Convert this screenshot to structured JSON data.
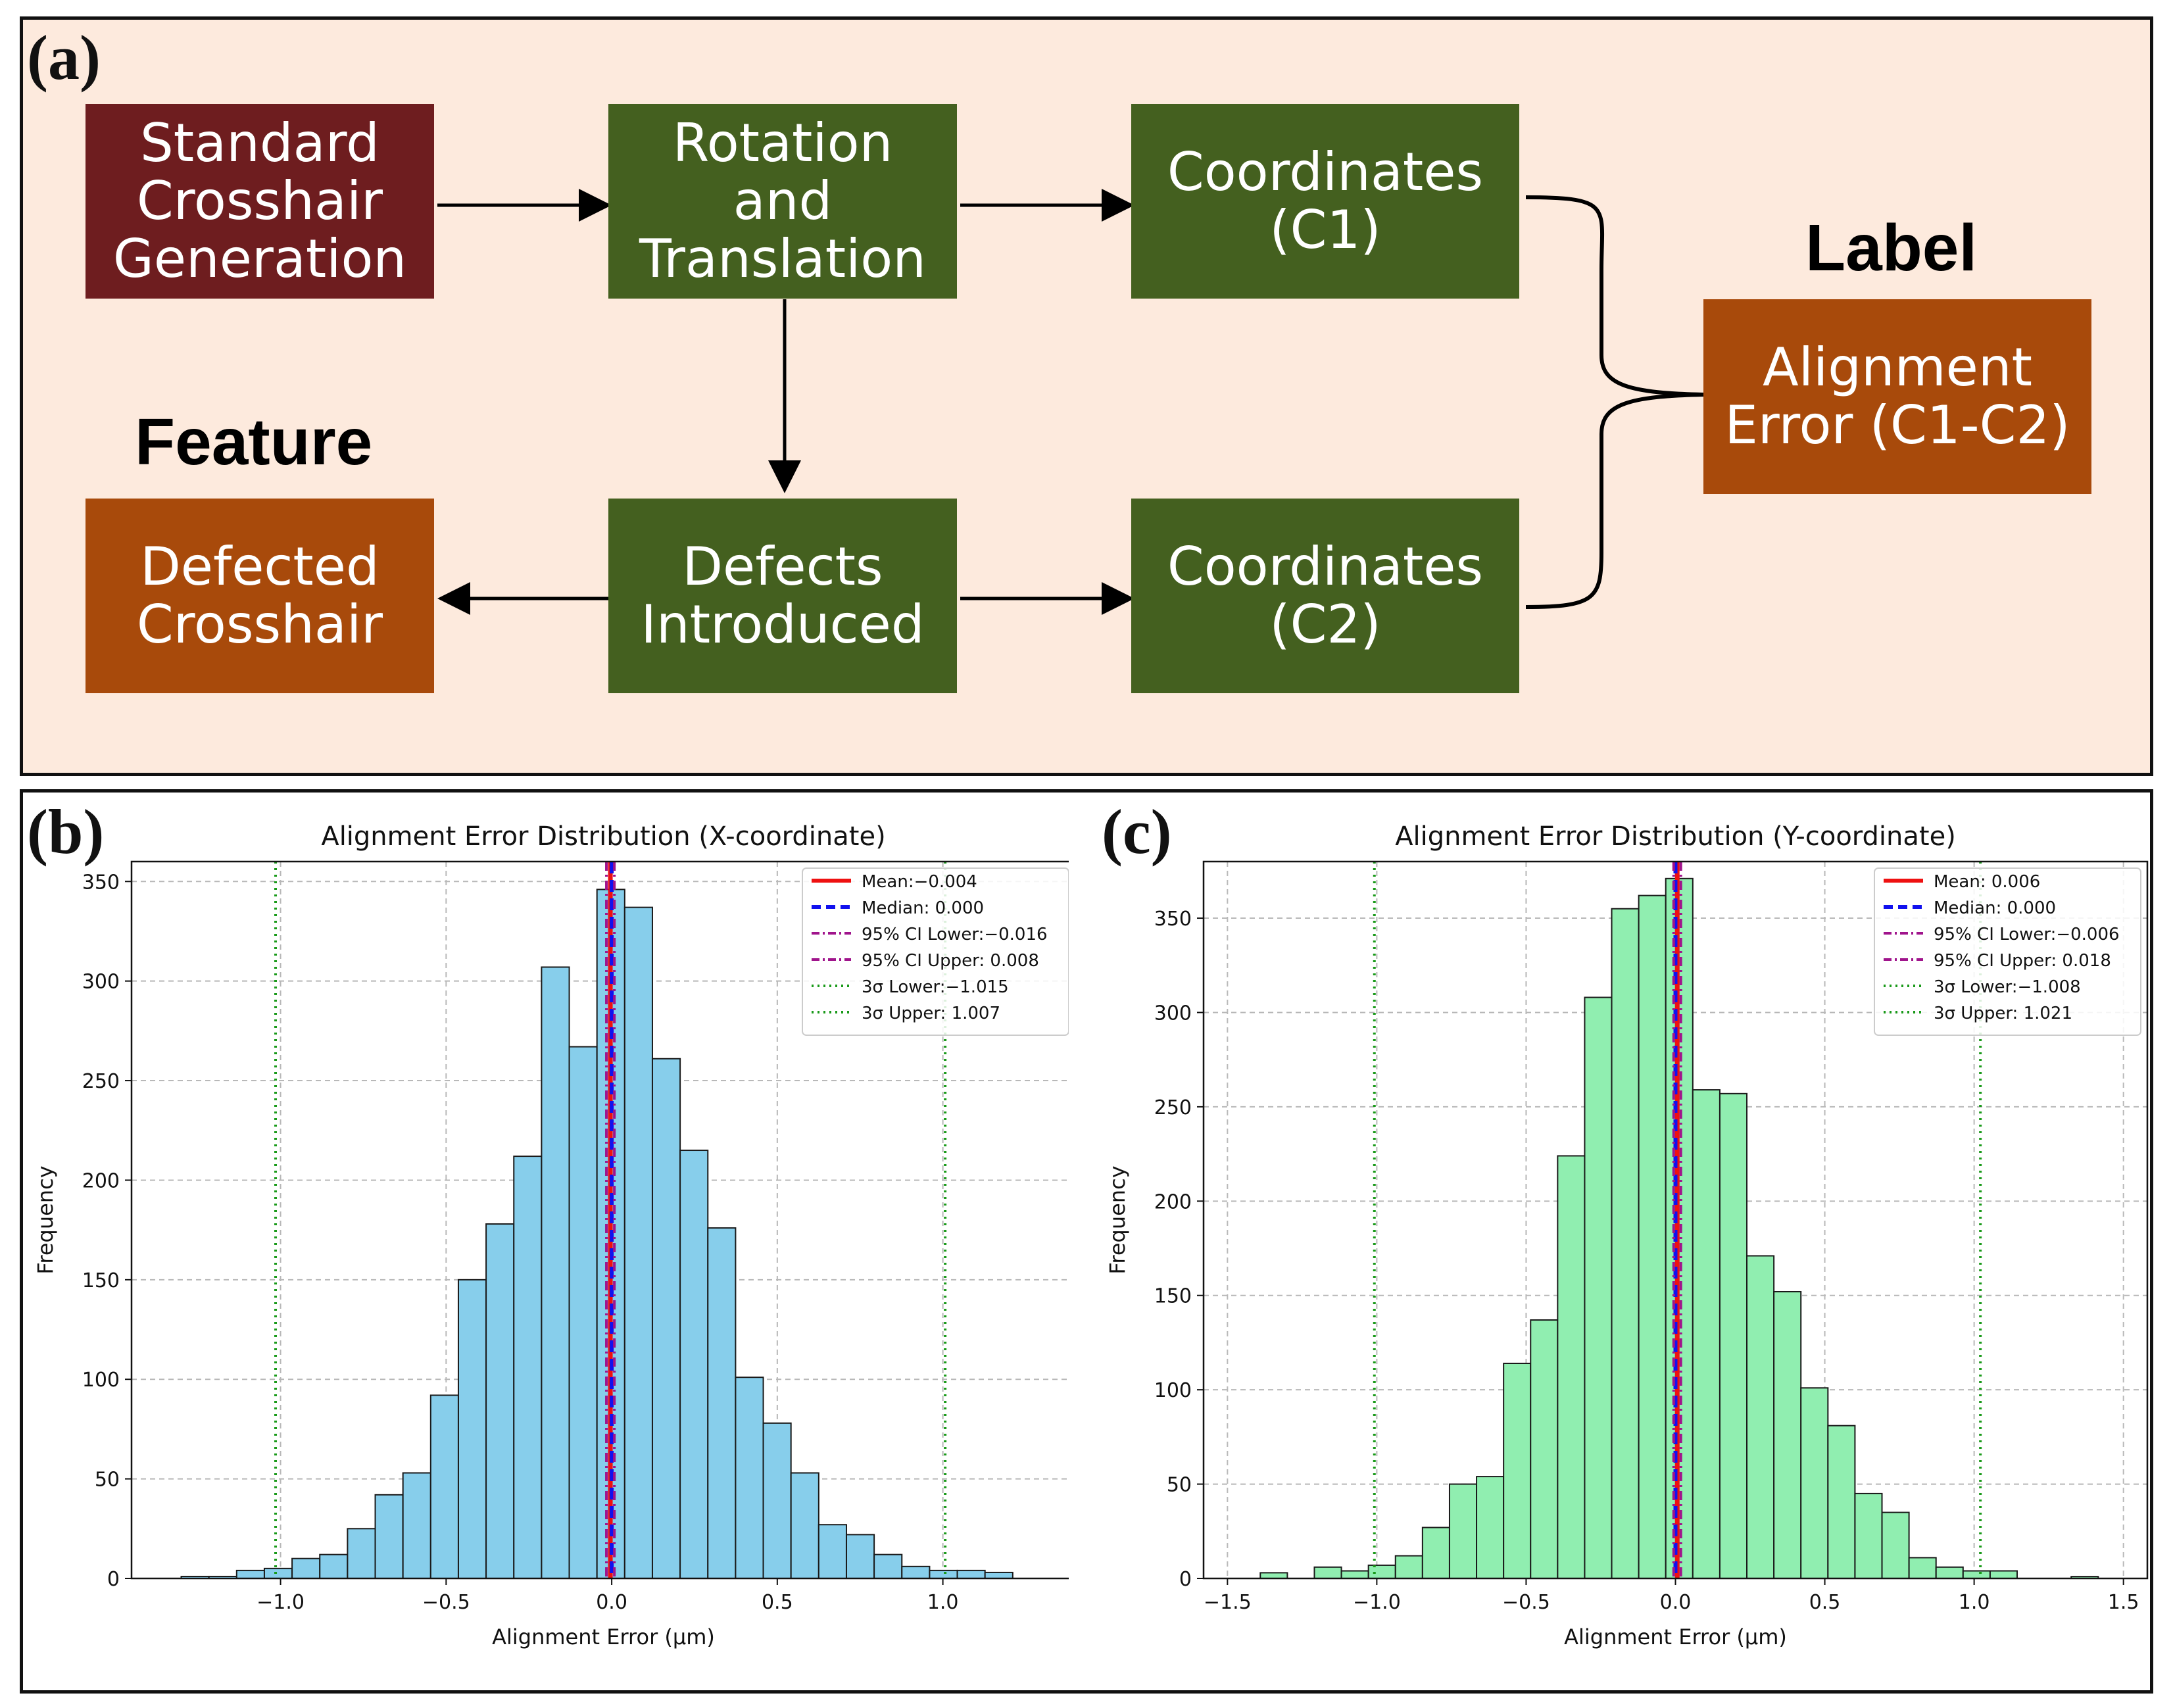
{
  "panel_labels": {
    "a": "(a)",
    "b": "(b)",
    "c": "(c)"
  },
  "flowchart": {
    "standard": "Standard\nCrosshair\nGeneration",
    "rotation": "Rotation\nand\nTranslation",
    "coord1": "Coordinates\n(C1)",
    "defects": "Defects\nIntroduced",
    "coord2": "Coordinates\n(C2)",
    "defected": "Defected\nCrosshair",
    "alignment": "Alignment\nError (C1-C2)",
    "feature_label": "Feature",
    "label_label": "Label"
  },
  "chart_data": [
    {
      "type": "bar",
      "title": "Alignment Error Distribution (X-coordinate)",
      "xlabel": "Alignment Error (μm)",
      "ylabel": "Frequency",
      "xlim": [
        -1.45,
        1.4
      ],
      "ylim": [
        0,
        360
      ],
      "xticks": [
        -1.0,
        -0.5,
        0.0,
        0.5,
        1.0
      ],
      "xtick_labels": [
        "−1.0",
        "−0.5",
        "0.0",
        "0.5",
        "1.0"
      ],
      "yticks": [
        0,
        50,
        100,
        150,
        200,
        250,
        300,
        350
      ],
      "grid": true,
      "bar_color": "#87ceeb",
      "bin_start": -1.3,
      "bin_width": 0.0837,
      "values": [
        1,
        1,
        4,
        5,
        10,
        12,
        25,
        42,
        53,
        92,
        150,
        178,
        212,
        307,
        267,
        346,
        337,
        261,
        215,
        176,
        101,
        78,
        53,
        27,
        22,
        12,
        6,
        4,
        4,
        3
      ],
      "lines": {
        "mean": -0.004,
        "median": 0.0,
        "ci_lower": -0.016,
        "ci_upper": 0.008,
        "sigma_lower": -1.015,
        "sigma_upper": 1.007
      },
      "legend": [
        "Mean:−0.004",
        "Median: 0.000",
        "95% CI Lower:−0.016",
        "95% CI Upper: 0.008",
        "3σ Lower:−1.015",
        "3σ Upper: 1.007"
      ]
    },
    {
      "type": "bar",
      "title": "Alignment Error Distribution (Y-coordinate)",
      "xlabel": "Alignment Error (μm)",
      "ylabel": "Frequency",
      "xlim": [
        -1.58,
        1.58
      ],
      "ylim": [
        0,
        380
      ],
      "xticks": [
        -1.5,
        -1.0,
        -0.5,
        0.0,
        0.5,
        1.0,
        1.5
      ],
      "xtick_labels": [
        "−1.5",
        "−1.0",
        "−0.5",
        "0.0",
        "0.5",
        "1.0",
        "1.5"
      ],
      "yticks": [
        0,
        50,
        100,
        150,
        200,
        250,
        300,
        350
      ],
      "grid": true,
      "bar_color": "#90eeb0",
      "bin_start": -1.39,
      "bin_width": 0.0905,
      "values": [
        3,
        0,
        6,
        4,
        7,
        12,
        27,
        50,
        54,
        114,
        137,
        224,
        308,
        355,
        362,
        371,
        259,
        257,
        171,
        152,
        101,
        81,
        45,
        35,
        11,
        6,
        4,
        4,
        0,
        0,
        1
      ],
      "lines": {
        "mean": 0.006,
        "median": 0.0,
        "ci_lower": -0.006,
        "ci_upper": 0.018,
        "sigma_lower": -1.008,
        "sigma_upper": 1.021
      },
      "legend": [
        "Mean: 0.006",
        "Median: 0.000",
        "95% CI Lower:−0.006",
        "95% CI Upper: 0.018",
        "3σ Lower:−1.008",
        "3σ Upper: 1.021"
      ]
    }
  ]
}
